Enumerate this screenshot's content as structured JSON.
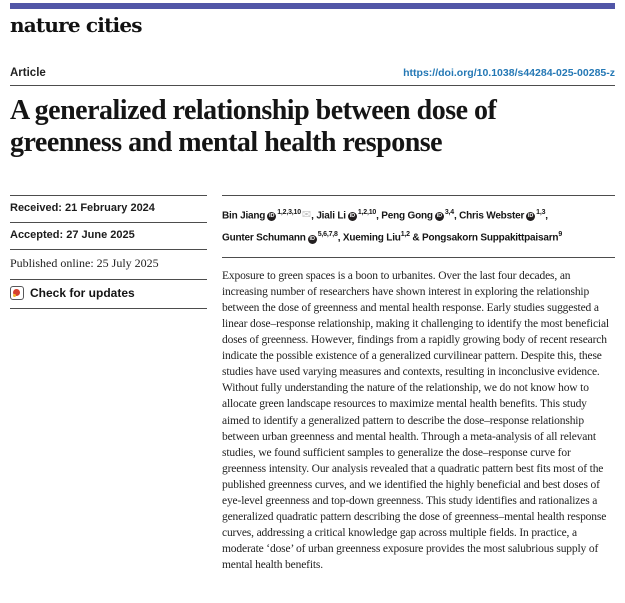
{
  "masthead": {
    "journal": "nature cities"
  },
  "article_header": {
    "type_label": "Article",
    "doi": "https://doi.org/10.1038/s44284-025-00285-z"
  },
  "title": {
    "line1": "A generalized relationship between dose of",
    "line2": "greenness and mental health response"
  },
  "dates": {
    "received": "Received: 21 February 2024",
    "accepted": "Accepted: 27 June 2025",
    "published": "Published online: 25 July 2025"
  },
  "check_for_updates": {
    "label": "Check for updates",
    "icon": "crossmark-icon"
  },
  "authors": {
    "orcid_icon_name": "orcid-id-icon",
    "orcid_icon_text": "iD",
    "envelope_icon_name": "envelope-icon",
    "envelope_glyph": "✉",
    "lines": [
      [
        {
          "name": "Bin Jiang",
          "orcid": true,
          "sup": "1,2,3,10",
          "envelope": true,
          "sep": ", "
        },
        {
          "name": "Jiali Li",
          "orcid": true,
          "sup": "1,2,10",
          "envelope": false,
          "sep": ", "
        },
        {
          "name": "Peng Gong",
          "orcid": true,
          "sup": "3,4",
          "envelope": false,
          "sep": ", "
        },
        {
          "name": "Chris Webster",
          "orcid": true,
          "sup": "1,3",
          "envelope": false,
          "sep": ","
        }
      ],
      [
        {
          "name": "Gunter Schumann",
          "orcid": true,
          "sup": "5,6,7,8",
          "envelope": false,
          "sep": ", "
        },
        {
          "name": "Xueming Liu",
          "orcid": false,
          "sup": "1,2",
          "envelope": false,
          "sep": " & "
        },
        {
          "name": "Pongsakorn Suppakittpaisarn",
          "orcid": false,
          "sup": "9",
          "envelope": false,
          "sep": ""
        }
      ]
    ]
  },
  "abstract": {
    "text": "Exposure to green spaces is a boon to urbanites. Over the last four decades, an increasing number of researchers have shown interest in exploring the relationship between the dose of greenness and mental health response. Early studies suggested a linear dose–response relationship, making it challenging to identify the most beneficial doses of greenness. However, findings from a rapidly growing body of recent research indicate the possible existence of a generalized curvilinear pattern. Despite this, these studies have used varying measures and contexts, resulting in inconclusive evidence. Without fully understanding the nature of the relationship, we do not know how to allocate green landscape resources to maximize mental health benefits. This study aimed to identify a generalized pattern to describe the dose–response relationship between urban greenness and mental health. Through a meta-analysis of all relevant studies, we found sufficient samples to generalize the dose–response curve for greenness intensity. Our analysis revealed that a quadratic pattern best fits most of the published greenness curves, and we identified the highly beneficial and best doses of eye-level greenness and top-down greenness. This study identifies and rationalizes a generalized quadratic pattern describing the dose of greenness–mental health response curves, addressing a critical knowledge gap across multiple fields. In practice, a moderate ‘dose’ of urban greenness exposure provides the most salubrious supply of mental health benefits."
  },
  "colors": {
    "top_bar": "#5156a7",
    "doi_link": "#2478b5",
    "rule": "#4d4d4d",
    "orcid_icon_bg": "#231f20",
    "crossmark_red": "#d6402d",
    "crossmark_yellow": "#f0b429",
    "envelope_gray": "#c4c4c4"
  }
}
